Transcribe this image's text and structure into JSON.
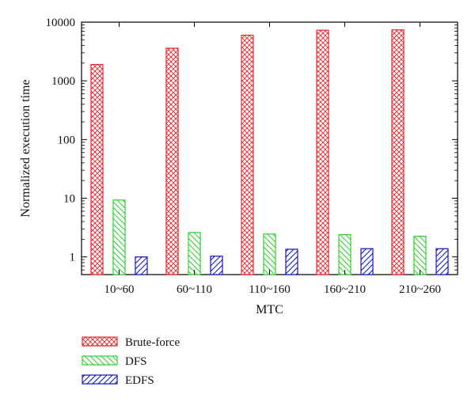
{
  "chart_data": {
    "type": "bar",
    "xlabel": "MTC",
    "ylabel": "Normalized execution time",
    "y_scale": "log",
    "ylim": [
      0.5,
      10000
    ],
    "y_ticks": [
      1,
      10,
      100,
      1000,
      10000
    ],
    "y_tick_labels": [
      "1",
      "10",
      "100",
      "1000",
      "10000"
    ],
    "categories": [
      "10~60",
      "60~110",
      "110~160",
      "160~210",
      "210~260"
    ],
    "series": [
      {
        "name": "Brute-force",
        "values": [
          1900,
          3600,
          6000,
          7300,
          7400
        ],
        "color": "#e8262b",
        "pattern": "crosshatch"
      },
      {
        "name": "DFS",
        "values": [
          9.3,
          2.6,
          2.45,
          2.4,
          2.25
        ],
        "color": "#2ad12a",
        "pattern": "diagonal-back"
      },
      {
        "name": "EDFS",
        "values": [
          1.0,
          1.03,
          1.35,
          1.38,
          1.38
        ],
        "color": "#1010c8",
        "pattern": "diagonal-forward"
      }
    ],
    "legend_position": "bottom-left, below plot",
    "grid": false
  }
}
